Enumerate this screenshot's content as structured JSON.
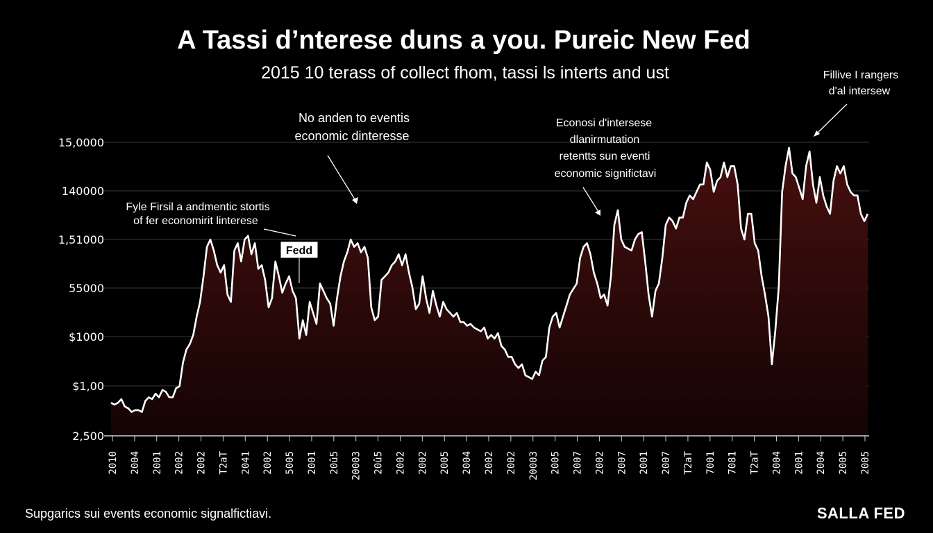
{
  "title": "A Tassi d’nterese duns a you. Pureic New Fed",
  "subtitle": "2015 10 terass of collect fhom, tassi ls interts and ust",
  "footer": "Supgarics sui events economic signalfictiavi.",
  "brand": "SALLA FED",
  "colors": {
    "background": "#000000",
    "line": "#ffffff",
    "area_top": "#4a1010",
    "area_bottom": "#150404",
    "grid": "#3a3a3a"
  },
  "annotations": {
    "left": [
      "Fyle Firsil a andmentic stortis",
      "of fer economirit linterese"
    ],
    "mid": [
      "No anden to eventis",
      "economic dinteresse"
    ],
    "right": [
      "Econosi d'intersese",
      "dlanirmutation",
      "retentts sun eventi",
      "economic significtavi"
    ],
    "far_right": [
      "Fillive I rangers",
      "d'al intersew"
    ],
    "fed_box": "Fedd"
  },
  "chart_data": {
    "type": "area",
    "title": "A Tassi d’nterese duns a you. Pureic New Fed",
    "subtitle": "2015 10 terass of collect fhom, tassi ls interts and ust",
    "y_tick_labels": [
      "15,0000",
      "140000",
      "1,51000",
      "55000",
      "$1000",
      "$1,00",
      "2,500"
    ],
    "x_tick_labels": [
      "2010",
      "2004",
      "2001",
      "2002",
      "2002",
      "T2aT",
      "2041",
      "2002",
      "5005",
      "2001",
      "20û5",
      "20003",
      "20û5",
      "2002",
      "2002",
      "2005",
      "2004",
      "2002",
      "2002",
      "20003",
      "2005",
      "2007",
      "2002",
      "2007",
      "2001",
      "2007",
      "T2aT",
      "7001",
      "7081",
      "T2aT",
      "2004",
      "2001",
      "2004",
      "2005",
      "2005"
    ],
    "grid": true,
    "series": [
      {
        "values": [
          0.83,
          0.82,
          0.83,
          0.85,
          0.81,
          0.8,
          0.78,
          0.79,
          0.79,
          0.78,
          0.84,
          0.86,
          0.85,
          0.88,
          0.86,
          0.9,
          0.89,
          0.86,
          0.86,
          0.91,
          0.92,
          1.05,
          1.12,
          1.15,
          1.2,
          1.3,
          1.38,
          1.52,
          1.68,
          1.72,
          1.66,
          1.58,
          1.54,
          1.58,
          1.42,
          1.38,
          1.66,
          1.7,
          1.6,
          1.72,
          1.74,
          1.64,
          1.7,
          1.56,
          1.58,
          1.5,
          1.35,
          1.4,
          1.6,
          1.52,
          1.43,
          1.48,
          1.52,
          1.44,
          1.4,
          1.18,
          1.28,
          1.2,
          1.38,
          1.32,
          1.26,
          1.48,
          1.44,
          1.4,
          1.37,
          1.25,
          1.4,
          1.52,
          1.6,
          1.65,
          1.72,
          1.68,
          1.7,
          1.65,
          1.68,
          1.62,
          1.35,
          1.28,
          1.3,
          1.5,
          1.52,
          1.54,
          1.58,
          1.6,
          1.64,
          1.58,
          1.64,
          1.54,
          1.46,
          1.34,
          1.37,
          1.52,
          1.4,
          1.32,
          1.44,
          1.36,
          1.3,
          1.38,
          1.34,
          1.32,
          1.3,
          1.32,
          1.27,
          1.27,
          1.25,
          1.26,
          1.24,
          1.23,
          1.22,
          1.24,
          1.18,
          1.2,
          1.18,
          1.21,
          1.14,
          1.12,
          1.08,
          1.08,
          1.04,
          1.02,
          1.04,
          0.98,
          0.97,
          0.96,
          1.0,
          0.98,
          1.06,
          1.08,
          1.24,
          1.3,
          1.32,
          1.24,
          1.3,
          1.36,
          1.42,
          1.45,
          1.48,
          1.62,
          1.68,
          1.7,
          1.64,
          1.54,
          1.48,
          1.4,
          1.42,
          1.36,
          1.52,
          1.8,
          1.88,
          1.72,
          1.68,
          1.67,
          1.66,
          1.72,
          1.75,
          1.76,
          1.6,
          1.42,
          1.3,
          1.44,
          1.48,
          1.62,
          1.8,
          1.84,
          1.82,
          1.78,
          1.84,
          1.84,
          1.92,
          1.96,
          1.94,
          1.98,
          2.02,
          2.02,
          2.14,
          2.1,
          1.98,
          2.04,
          2.06,
          2.14,
          2.06,
          2.12,
          2.12,
          2.02,
          1.78,
          1.72,
          1.86,
          1.86,
          1.7,
          1.66,
          1.52,
          1.42,
          1.3,
          1.04,
          1.22,
          1.46,
          1.98,
          2.12,
          2.22,
          2.08,
          2.06,
          2.0,
          1.94,
          2.12,
          2.2,
          2.02,
          1.92,
          2.06,
          1.96,
          1.9,
          1.86,
          2.04,
          2.12,
          2.08,
          2.12,
          2.02,
          1.98,
          1.96,
          1.96,
          1.86,
          1.82,
          1.86
        ]
      }
    ]
  }
}
